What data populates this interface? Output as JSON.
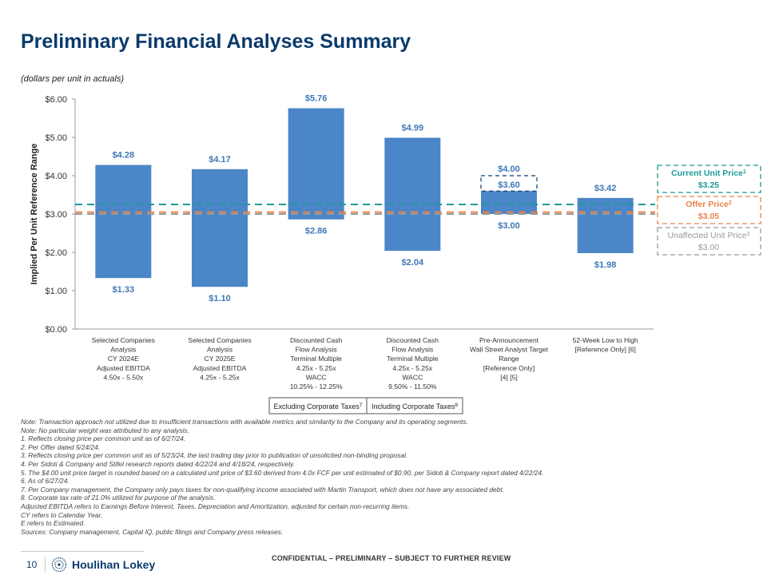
{
  "page": {
    "title": "Preliminary Financial Analyses Summary",
    "subtitle": "(dollars per unit in actuals)",
    "page_number": "10",
    "brand": "Houlihan Lokey",
    "confidential": "CONFIDENTIAL – PRELIMINARY – SUBJECT TO FURTHER REVIEW",
    "notes": [
      "Note: Transaction approach not utilized due to insufficient transactions with available metrics and similarity to the Company and its operating segments.",
      "Note: No particular weight was attributed to any analysis.",
      "1. Reflects closing price per common unit as of 6/27/24.",
      "2. Per Offer dated 5/24/24.",
      "3. Reflects closing price per common unit as of 5/23/24, the last trading day prior to publication of unsolicited non-binding proposal.",
      "4. Per Sidoti & Company and Stifel research reports dated 4/22/24 and 4/18/24, respectively.",
      "5. The $4.00 unit price target is rounded based on a calculated unit price of $3.60 derived from 4.0x FCF per unit estimated of $0.90, per Sidoti & Company report dated 4/22/24.",
      "6. As of 6/27/24.",
      "7. Per Company management, the Company only pays taxes for non-qualifying income associated with Martin Transport, which does not have any associated debt.",
      "8. Corporate tax rate of 21.0% utilized for purpose of the analysis.",
      "Adjusted EBITDA refers to Earnings Before Interest, Taxes, Depreciation and Amortization, adjusted for certain non-recurring items.",
      "CY refers to Calendar Year.",
      "E refers to Estimated.",
      "Sources: Company management, Capital IQ, public filings and Company press releases."
    ]
  },
  "chart_data": {
    "type": "bar",
    "subtype": "floating-range",
    "ylabel": "Implied Per Unit  Reference Range",
    "ylim": [
      0,
      6
    ],
    "yticks": [
      0,
      1,
      2,
      3,
      4,
      5,
      6
    ],
    "ytick_labels": [
      "$0.00",
      "$1.00",
      "$2.00",
      "$3.00",
      "$4.00",
      "$5.00",
      "$6.00"
    ],
    "bar_color": "#4a86c8",
    "categories": [
      {
        "lines": [
          "Selected Companies",
          "Analysis",
          "CY 2024E",
          "Adjusted EBITDA",
          "4.50x - 5.50x"
        ],
        "low": 1.33,
        "high": 4.28,
        "low_label": "$1.33",
        "high_label": "$4.28"
      },
      {
        "lines": [
          "Selected Companies",
          "Analysis",
          "CY 2025E",
          "Adjusted EBITDA",
          "4.25x - 5.25x"
        ],
        "low": 1.1,
        "high": 4.17,
        "low_label": "$1.10",
        "high_label": "$4.17"
      },
      {
        "lines": [
          "Discounted Cash",
          "Flow Analysis",
          "Terminal Multiple",
          "4.25x - 5.25x",
          "WACC",
          "10.25% - 12.25%"
        ],
        "low": 2.86,
        "high": 5.76,
        "low_label": "$2.86",
        "high_label": "$5.76"
      },
      {
        "lines": [
          "Discounted Cash",
          "Flow Analysis",
          "Terminal Multiple",
          "4.25x - 5.25x",
          "WACC",
          "9.50% - 11.50%"
        ],
        "low": 2.04,
        "high": 4.99,
        "low_label": "$2.04",
        "high_label": "$4.99"
      },
      {
        "lines": [
          "Pre-Announcement",
          "Wall Street Analyst Target",
          "Range",
          "[Reference Only]",
          "[4] [5]"
        ],
        "low": 3.0,
        "high": 3.6,
        "low_label": "$3.00",
        "high_label": "$3.60",
        "extra_value": 4.0,
        "extra_label": "$4.00"
      },
      {
        "lines": [
          "52-Week Low to High",
          "[Reference Only] [6]"
        ],
        "low": 1.98,
        "high": 3.42,
        "low_label": "$1.98",
        "high_label": "$3.42"
      }
    ],
    "reference_lines": [
      {
        "name": "Current Unit Price",
        "sup": "1",
        "value": 3.25,
        "value_label": "$3.25",
        "color": "#1f9a9a"
      },
      {
        "name": "Offer Price",
        "sup": "2",
        "value": 3.05,
        "value_label": "$3.05",
        "color": "#e8834a"
      },
      {
        "name": "Unaffected Unit Price",
        "sup": "3",
        "value": 3.0,
        "value_label": "$3.00",
        "color": "#9a9a9a"
      }
    ],
    "groups": [
      {
        "label": "Excluding Corporate Taxes",
        "sup": "7"
      },
      {
        "label": "Including Corporate Taxes",
        "sup": "8"
      }
    ]
  }
}
